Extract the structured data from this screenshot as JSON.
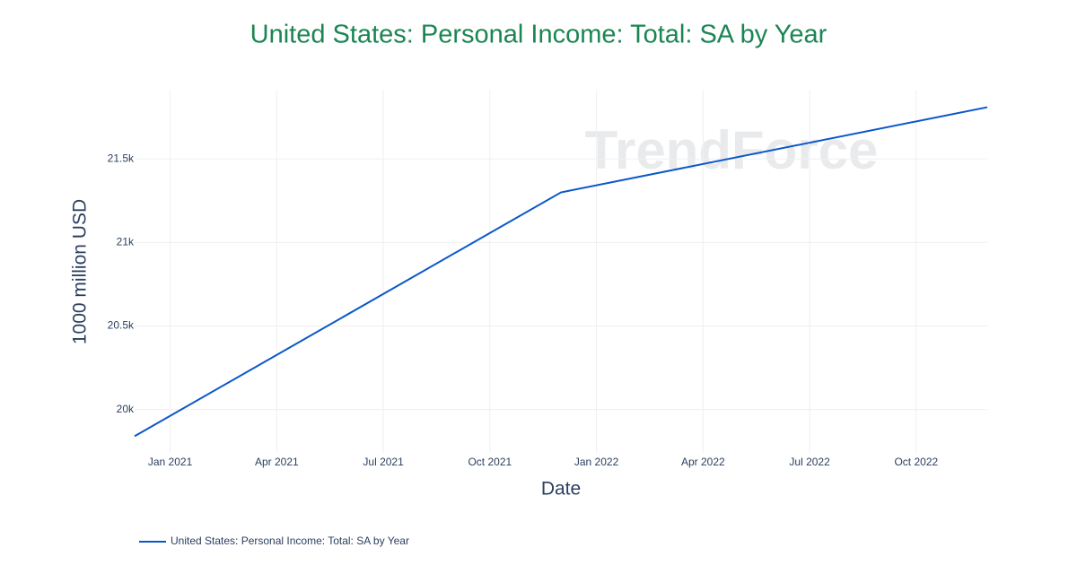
{
  "chart_data": {
    "type": "line",
    "title": "United States: Personal Income: Total: SA by Year",
    "x_label": "Date",
    "y_label": "1000 million USD",
    "watermark": "TrendForce",
    "x": [
      "2020-12",
      "2021-12",
      "2022-12"
    ],
    "series": [
      {
        "name": "United States: Personal Income: Total: SA by Year",
        "color": "#0b57c9",
        "values": [
          19840,
          21300,
          21810
        ]
      }
    ],
    "xlim": [
      "2020-12",
      "2022-12"
    ],
    "xticks": [
      {
        "value": "2021-01",
        "label": "Jan 2021"
      },
      {
        "value": "2021-04",
        "label": "Apr 2021"
      },
      {
        "value": "2021-07",
        "label": "Jul 2021"
      },
      {
        "value": "2021-10",
        "label": "Oct 2021"
      },
      {
        "value": "2022-01",
        "label": "Jan 2022"
      },
      {
        "value": "2022-04",
        "label": "Apr 2022"
      },
      {
        "value": "2022-07",
        "label": "Jul 2022"
      },
      {
        "value": "2022-10",
        "label": "Oct 2022"
      }
    ],
    "ylim": [
      19740,
      21915
    ],
    "yticks": [
      {
        "value": 20000,
        "label": "20k"
      },
      {
        "value": 20500,
        "label": "20.5k"
      },
      {
        "value": 21000,
        "label": "21k"
      },
      {
        "value": 21500,
        "label": "21.5k"
      }
    ],
    "grid": true
  }
}
